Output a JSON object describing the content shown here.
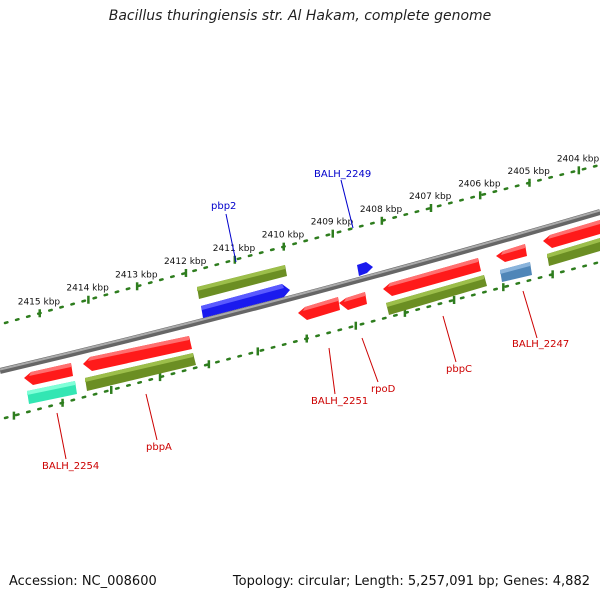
{
  "title": "Bacillus thuringiensis str. Al Hakam, complete genome",
  "footer": {
    "accession": "Accession: NC_008600",
    "summary": "Topology: circular; Length: 5,257,091 bp; Genes: 4,882"
  },
  "colors": {
    "cds_red": "#ff1a1a",
    "cds_olive": "#6b8e23",
    "cds_blue": "#1a1aee",
    "cds_steel": "#4f86b8",
    "cds_aqua": "#33e6b3",
    "backbone": "#888888",
    "ruler_green": "#2e7d1e",
    "label_blue": "#0000cc",
    "label_red": "#cc0000"
  },
  "ruler_outer": {
    "labels": [
      "2415 kbp",
      "2414 kbp",
      "2413 kbp",
      "2412 kbp",
      "2411 kbp",
      "2410 kbp",
      "2409 kbp",
      "2408 kbp",
      "2407 kbp",
      "2406 kbp",
      "2405 kbp",
      "2404 kbp"
    ]
  },
  "gene_labels": {
    "pbp2": "pbp2",
    "balh_2249": "BALH_2249",
    "balh_2247": "BALH_2247",
    "pbpc": "pbpC",
    "rpod": "rpoD",
    "balh_2251": "BALH_2251",
    "pbpa": "pbpA",
    "balh_2254": "BALH_2254"
  }
}
